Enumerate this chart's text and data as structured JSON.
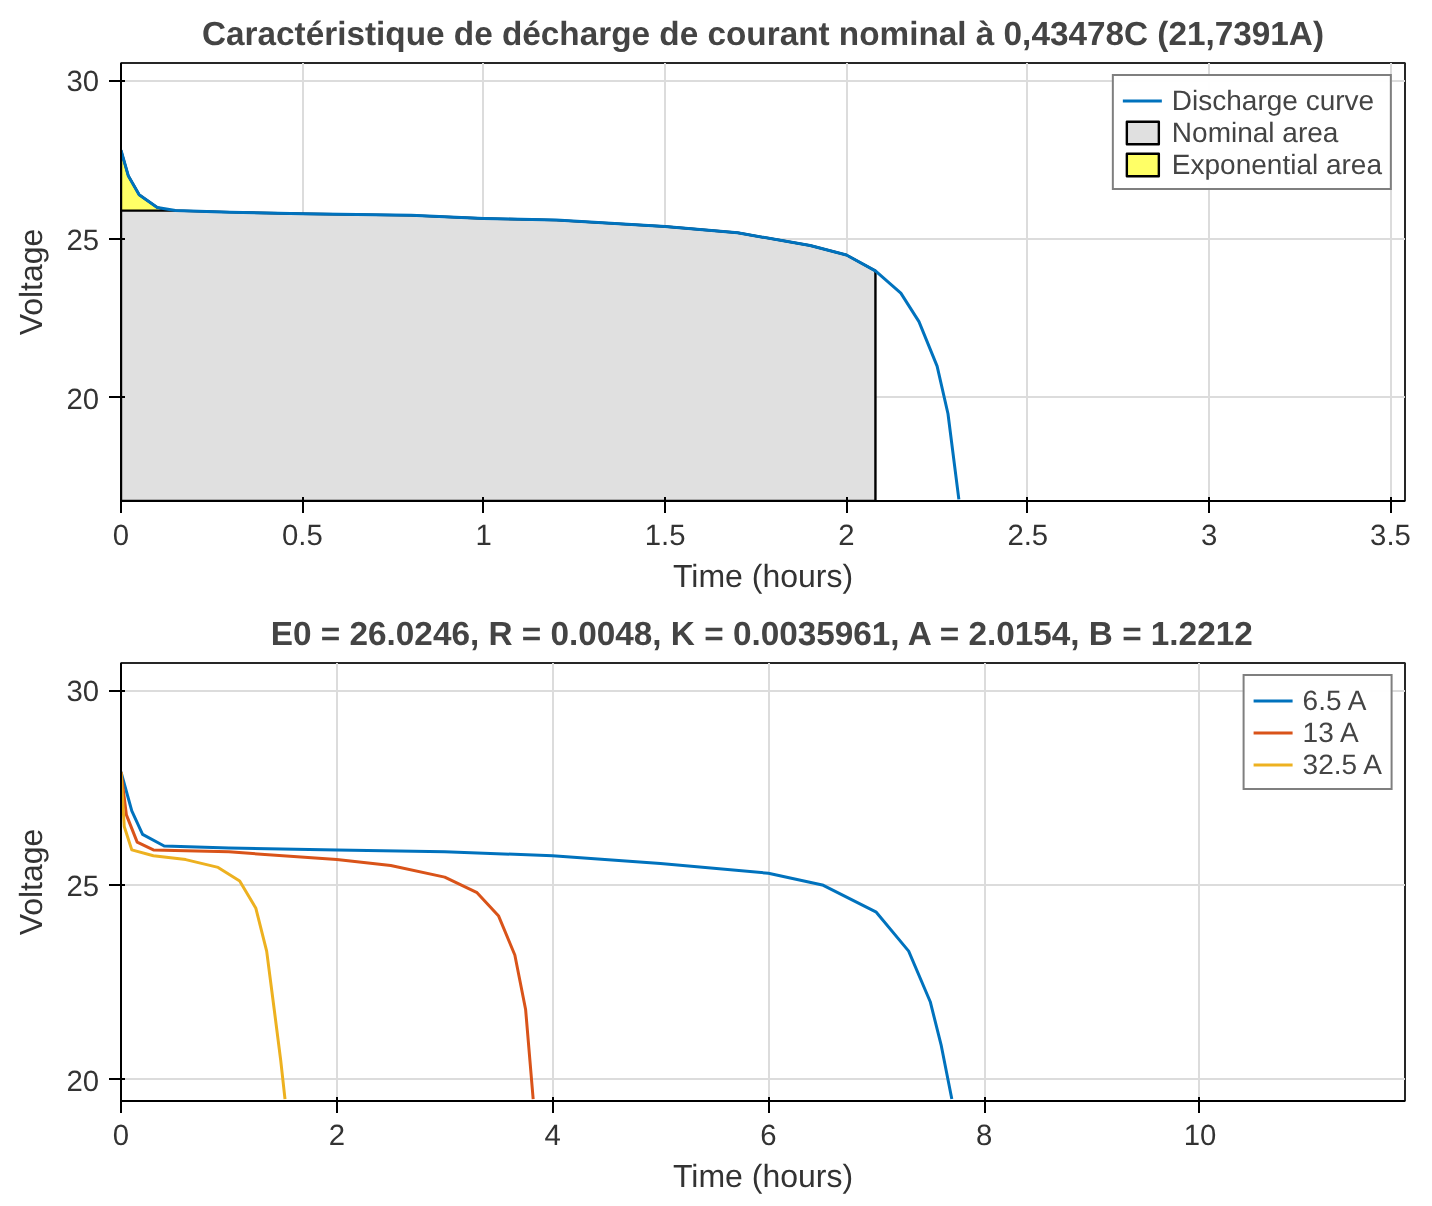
{
  "chart_data": [
    {
      "type": "line",
      "title": "Caractéristique de décharge de courant nominal à 0,43478C (21,7391A)",
      "xlabel": "Time (hours)",
      "ylabel": "Voltage",
      "xlim": [
        0,
        3.54
      ],
      "ylim": [
        16.75,
        30.55
      ],
      "xticks": [
        0,
        0.5,
        1,
        1.5,
        2,
        2.5,
        3,
        3.5
      ],
      "yticks": [
        20,
        25,
        30
      ],
      "grid": true,
      "legend": "top right",
      "series": [
        {
          "name": "Discharge curve",
          "type": "line",
          "color": "#0072bd",
          "x": [
            0,
            0.02,
            0.05,
            0.1,
            0.15,
            0.3,
            0.5,
            0.8,
            1.0,
            1.2,
            1.5,
            1.7,
            1.9,
            2.0,
            2.08,
            2.15,
            2.2,
            2.25,
            2.28,
            2.31
          ],
          "values": [
            27.8,
            27.0,
            26.4,
            26.0,
            25.9,
            25.85,
            25.8,
            25.75,
            25.65,
            25.6,
            25.4,
            25.2,
            24.8,
            24.5,
            24.0,
            23.3,
            22.4,
            21.0,
            19.5,
            16.8
          ]
        },
        {
          "name": "Nominal area",
          "type": "area",
          "color": "#e0e0e0",
          "x": [
            0,
            0.13,
            0.15,
            0.3,
            0.5,
            0.8,
            1.0,
            1.2,
            1.5,
            1.7,
            1.9,
            2.0,
            2.08
          ],
          "values": [
            25.9,
            25.9,
            25.9,
            25.85,
            25.8,
            25.75,
            25.65,
            25.6,
            25.4,
            25.2,
            24.8,
            24.5,
            24.0
          ]
        },
        {
          "name": "Exponential area",
          "type": "area",
          "color": "#ffff66",
          "x": [
            0,
            0.02,
            0.05,
            0.1,
            0.13
          ],
          "values": [
            27.8,
            27.0,
            26.4,
            26.0,
            25.9
          ]
        }
      ]
    },
    {
      "type": "line",
      "title": "E0 = 26.0246, R = 0.0048, K = 0.0035961, A = 2.0154, B = 1.2212",
      "xlabel": "Time (hours)",
      "ylabel": "Voltage",
      "xlim": [
        0,
        11.9
      ],
      "ylim": [
        19.45,
        30.7
      ],
      "xticks": [
        0,
        2,
        4,
        6,
        8,
        10
      ],
      "yticks": [
        20,
        25,
        30
      ],
      "grid": true,
      "legend": "top right",
      "series": [
        {
          "name": "6.5 A",
          "color": "#0072bd",
          "x": [
            0,
            0.1,
            0.2,
            0.4,
            1,
            2,
            3,
            4,
            5,
            6,
            6.5,
            7,
            7.3,
            7.5,
            7.6,
            7.7
          ],
          "values": [
            27.9,
            26.9,
            26.3,
            26.0,
            25.95,
            25.9,
            25.85,
            25.75,
            25.55,
            25.3,
            25.0,
            24.3,
            23.3,
            22.0,
            20.9,
            19.5
          ]
        },
        {
          "name": "13 A",
          "color": "#d95319",
          "x": [
            0,
            0.05,
            0.15,
            0.3,
            1,
            2,
            2.5,
            3,
            3.3,
            3.5,
            3.65,
            3.75,
            3.82
          ],
          "values": [
            27.9,
            26.8,
            26.1,
            25.9,
            25.85,
            25.65,
            25.5,
            25.2,
            24.8,
            24.2,
            23.2,
            21.8,
            19.5
          ]
        },
        {
          "name": "32.5 A",
          "color": "#edb120",
          "x": [
            0,
            0.03,
            0.1,
            0.3,
            0.6,
            0.9,
            1.1,
            1.25,
            1.35,
            1.42,
            1.48,
            1.52
          ],
          "values": [
            27.9,
            26.5,
            25.9,
            25.75,
            25.65,
            25.45,
            25.1,
            24.4,
            23.3,
            21.8,
            20.5,
            19.5
          ]
        }
      ]
    }
  ]
}
